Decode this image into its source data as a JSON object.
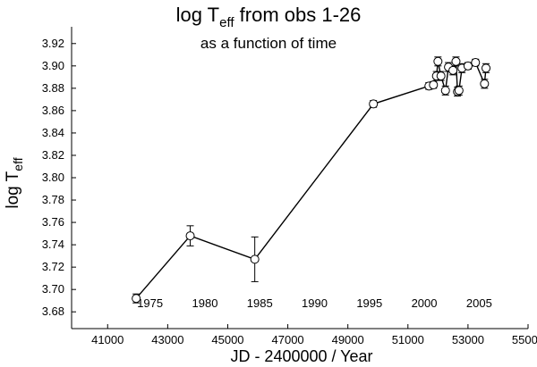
{
  "chart_data": {
    "type": "scatter",
    "title": "log T",
    "title_sub": "eff",
    "title_rest": " from obs 1-26",
    "subtitle": "as a function of time",
    "ylabel": "log T",
    "ylabel_sub": "eff",
    "xlabel": "JD - 2400000 /  Year",
    "xlim": [
      39800,
      55000
    ],
    "ylim": [
      3.665,
      3.935
    ],
    "x_ticks": [
      41000,
      43000,
      45000,
      47000,
      49000,
      51000,
      53000,
      55000
    ],
    "y_ticks": [
      3.68,
      3.7,
      3.72,
      3.74,
      3.76,
      3.78,
      3.8,
      3.82,
      3.84,
      3.86,
      3.88,
      3.9,
      3.92
    ],
    "year_ticks": [
      {
        "label": "1975",
        "jd": 42413
      },
      {
        "label": "1980",
        "jd": 44240
      },
      {
        "label": "1985",
        "jd": 46066
      },
      {
        "label": "1990",
        "jd": 47892
      },
      {
        "label": "1995",
        "jd": 49718
      },
      {
        "label": "2000",
        "jd": 51544
      },
      {
        "label": "2005",
        "jd": 53371
      }
    ],
    "grid": false,
    "connected": true,
    "marker": "open-circle",
    "series": [
      {
        "points": [
          {
            "x": 41950,
            "y": 3.692,
            "err": 0.004
          },
          {
            "x": 43750,
            "y": 3.748,
            "err": 0.009
          },
          {
            "x": 45900,
            "y": 3.727,
            "err": 0.02
          },
          {
            "x": 49850,
            "y": 3.866,
            "err": 0.003
          },
          {
            "x": 51700,
            "y": 3.882,
            "err": 0.003
          },
          {
            "x": 51850,
            "y": 3.883,
            "err": 0.003
          },
          {
            "x": 51950,
            "y": 3.891,
            "err": 0.004
          },
          {
            "x": 52000,
            "y": 3.904,
            "err": 0.004
          },
          {
            "x": 52100,
            "y": 3.891,
            "err": 0.004
          },
          {
            "x": 52250,
            "y": 3.878,
            "err": 0.004
          },
          {
            "x": 52350,
            "y": 3.899,
            "err": 0.004
          },
          {
            "x": 52500,
            "y": 3.896,
            "err": 0.004
          },
          {
            "x": 52600,
            "y": 3.904,
            "err": 0.004
          },
          {
            "x": 52650,
            "y": 3.877,
            "err": 0.004
          },
          {
            "x": 52700,
            "y": 3.878,
            "err": 0.004
          },
          {
            "x": 52800,
            "y": 3.898,
            "err": 0.004
          },
          {
            "x": 53000,
            "y": 3.9,
            "err": 0.003
          },
          {
            "x": 53250,
            "y": 3.903,
            "err": 0.003
          },
          {
            "x": 53550,
            "y": 3.884,
            "err": 0.004
          },
          {
            "x": 53600,
            "y": 3.898,
            "err": 0.004
          }
        ]
      }
    ]
  }
}
